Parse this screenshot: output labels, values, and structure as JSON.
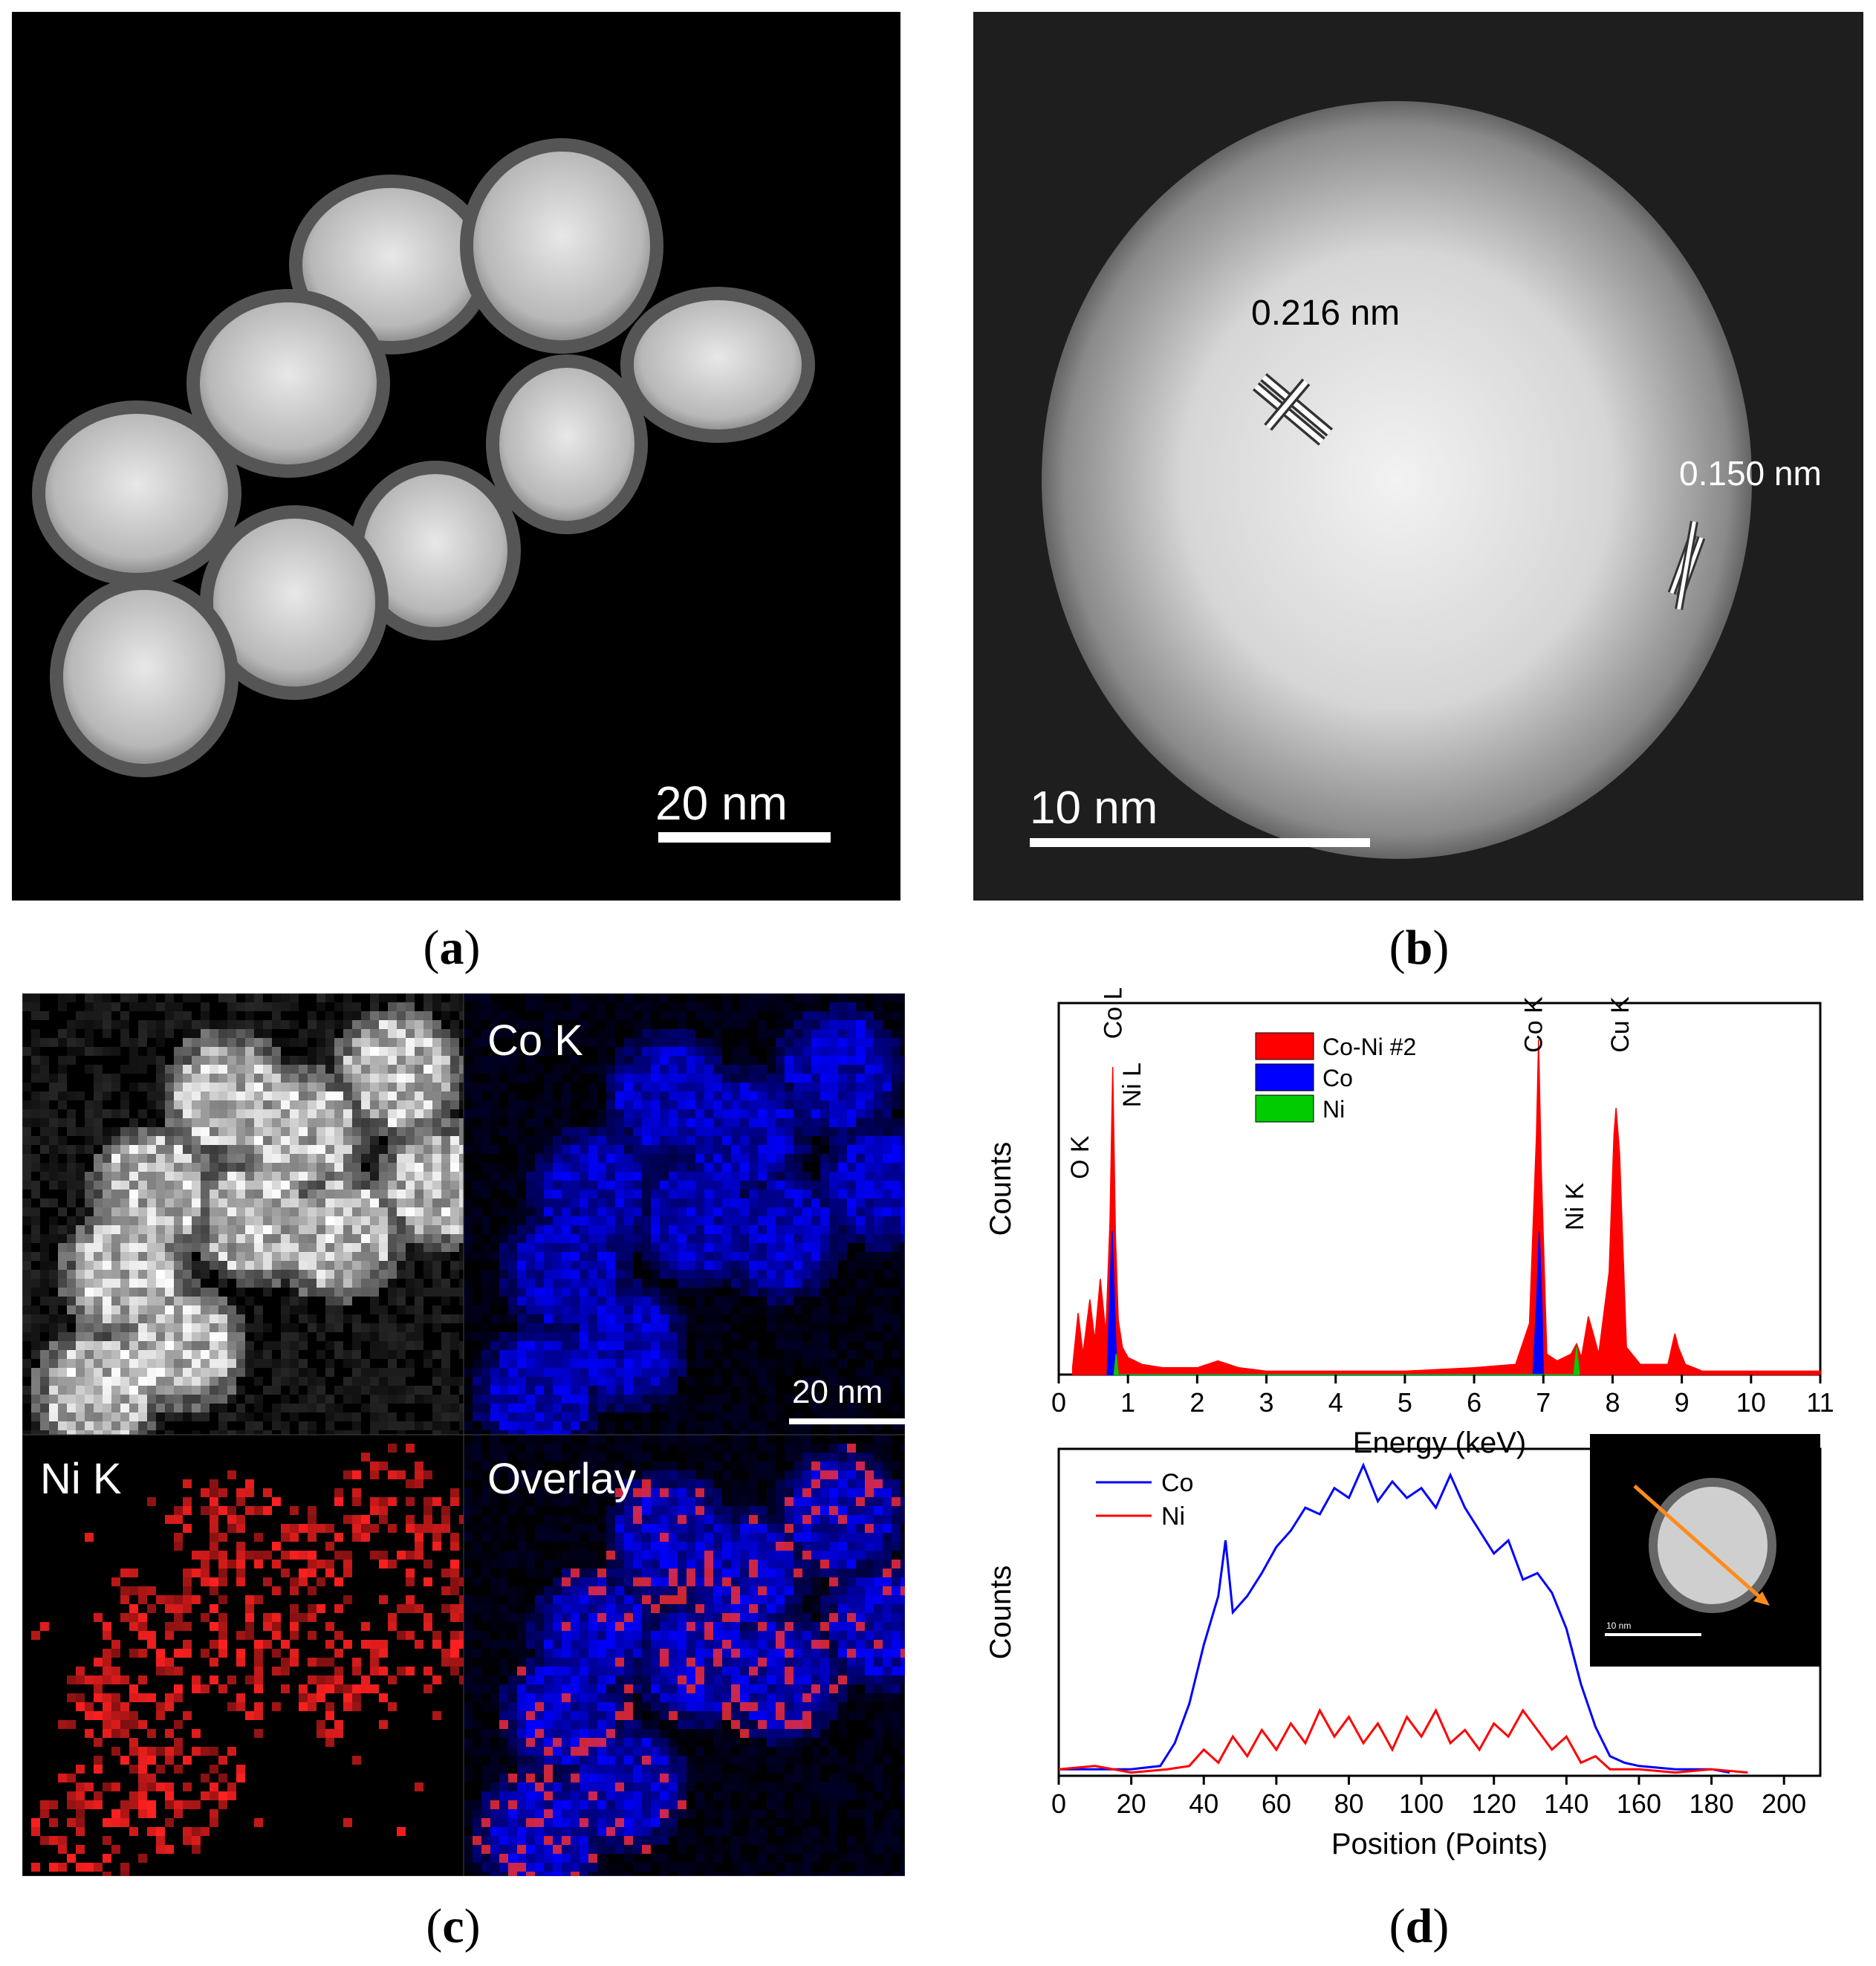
{
  "panels": {
    "a": {
      "label_open": "(",
      "label_letter": "a",
      "label_close": ")",
      "scale_bar": "20 nm"
    },
    "b": {
      "label_open": "(",
      "label_letter": "b",
      "label_close": ")",
      "scale_bar": "10 nm",
      "annotations": [
        "0.216 nm",
        "0.150 nm"
      ]
    },
    "c": {
      "label_open": "(",
      "label_letter": "c",
      "label_close": ")",
      "maps": [
        {
          "title": "",
          "color": "#ffffff"
        },
        {
          "title": "Co K",
          "color": "#0000ff"
        },
        {
          "title": "Ni K",
          "color": "#ff2020"
        },
        {
          "title": "Overlay",
          "color": "#0000ff"
        }
      ],
      "scale_bar": "20 nm"
    },
    "d": {
      "label_open": "(",
      "label_letter": "d",
      "label_close": ")",
      "inset_scale": "10 nm"
    }
  },
  "chart_data": [
    {
      "type": "area",
      "xlabel": "Energy (keV)",
      "ylabel": "Counts",
      "xlim": [
        0,
        11
      ],
      "xticks": [
        "0",
        "1",
        "2",
        "3",
        "4",
        "5",
        "6",
        "7",
        "8",
        "9",
        "10",
        "11"
      ],
      "legend": [
        "Co-Ni #2",
        "Co",
        "Ni"
      ],
      "legend_colors": [
        "#ff0000",
        "#0000ff",
        "#00cc00"
      ],
      "peak_labels": [
        "O K",
        "Co L",
        "Ni L",
        "Co K",
        "Ni K",
        "Cu K"
      ],
      "series": [
        {
          "name": "Co-Ni #2",
          "color": "#ff0000",
          "x": [
            0.2,
            0.28,
            0.35,
            0.45,
            0.52,
            0.6,
            0.68,
            0.74,
            0.78,
            0.82,
            0.86,
            0.92,
            1.0,
            1.2,
            1.5,
            2.0,
            2.3,
            2.6,
            3.0,
            4.0,
            5.0,
            6.0,
            6.6,
            6.8,
            6.9,
            6.93,
            6.97,
            7.05,
            7.2,
            7.4,
            7.48,
            7.55,
            7.65,
            7.72,
            7.8,
            7.95,
            8.02,
            8.05,
            8.1,
            8.2,
            8.4,
            8.8,
            8.9,
            8.95,
            9.05,
            9.3,
            10,
            11
          ],
          "y": [
            2,
            18,
            6,
            22,
            10,
            28,
            12,
            45,
            90,
            40,
            16,
            8,
            5,
            3,
            2,
            2,
            4,
            2,
            1,
            1,
            1,
            2,
            3,
            15,
            70,
            98,
            60,
            6,
            4,
            6,
            9,
            5,
            17,
            12,
            6,
            30,
            70,
            78,
            65,
            8,
            3,
            3,
            12,
            8,
            3,
            1,
            1,
            1
          ]
        },
        {
          "name": "Co",
          "color": "#0000ff",
          "x": [
            0.7,
            0.74,
            0.77,
            0.8,
            0.84,
            6.85,
            6.9,
            6.94,
            6.98,
            7.0
          ],
          "y": [
            0,
            25,
            42,
            25,
            0,
            0,
            20,
            42,
            20,
            0
          ]
        },
        {
          "name": "Ni",
          "color": "#00cc00",
          "x": [
            0.8,
            0.83,
            0.86,
            7.44,
            7.48,
            7.52
          ],
          "y": [
            0,
            6,
            0,
            0,
            8,
            0
          ]
        }
      ]
    },
    {
      "type": "line",
      "xlabel": "Position (Points)",
      "ylabel": "Counts",
      "xlim": [
        0,
        210
      ],
      "xticks": [
        "0",
        "20",
        "40",
        "60",
        "80",
        "100",
        "120",
        "140",
        "160",
        "180",
        "200"
      ],
      "legend": [
        "Co",
        "Ni"
      ],
      "series": [
        {
          "name": "Co",
          "color": "#0000ff",
          "x": [
            0,
            10,
            20,
            28,
            32,
            36,
            40,
            44,
            46,
            48,
            52,
            56,
            60,
            64,
            68,
            72,
            76,
            80,
            84,
            88,
            92,
            96,
            100,
            104,
            108,
            112,
            116,
            120,
            124,
            128,
            132,
            136,
            140,
            144,
            148,
            152,
            156,
            160,
            170,
            180,
            185
          ],
          "y": [
            2,
            2,
            2,
            3,
            10,
            22,
            40,
            55,
            72,
            50,
            55,
            62,
            70,
            75,
            82,
            80,
            88,
            85,
            95,
            84,
            90,
            85,
            88,
            82,
            92,
            82,
            75,
            68,
            72,
            60,
            62,
            56,
            45,
            28,
            15,
            6,
            4,
            3,
            2,
            2,
            1
          ]
        },
        {
          "name": "Ni",
          "color": "#ff0000",
          "x": [
            0,
            10,
            20,
            30,
            36,
            40,
            44,
            48,
            52,
            56,
            60,
            64,
            68,
            72,
            76,
            80,
            84,
            88,
            92,
            96,
            100,
            104,
            108,
            112,
            116,
            120,
            124,
            128,
            132,
            136,
            140,
            144,
            148,
            152,
            160,
            170,
            180,
            190
          ],
          "y": [
            2,
            3,
            1,
            2,
            3,
            8,
            4,
            12,
            6,
            14,
            8,
            16,
            10,
            20,
            12,
            18,
            10,
            16,
            8,
            18,
            12,
            20,
            10,
            14,
            8,
            16,
            12,
            20,
            14,
            8,
            12,
            4,
            6,
            2,
            2,
            1,
            2,
            1
          ]
        }
      ]
    }
  ]
}
